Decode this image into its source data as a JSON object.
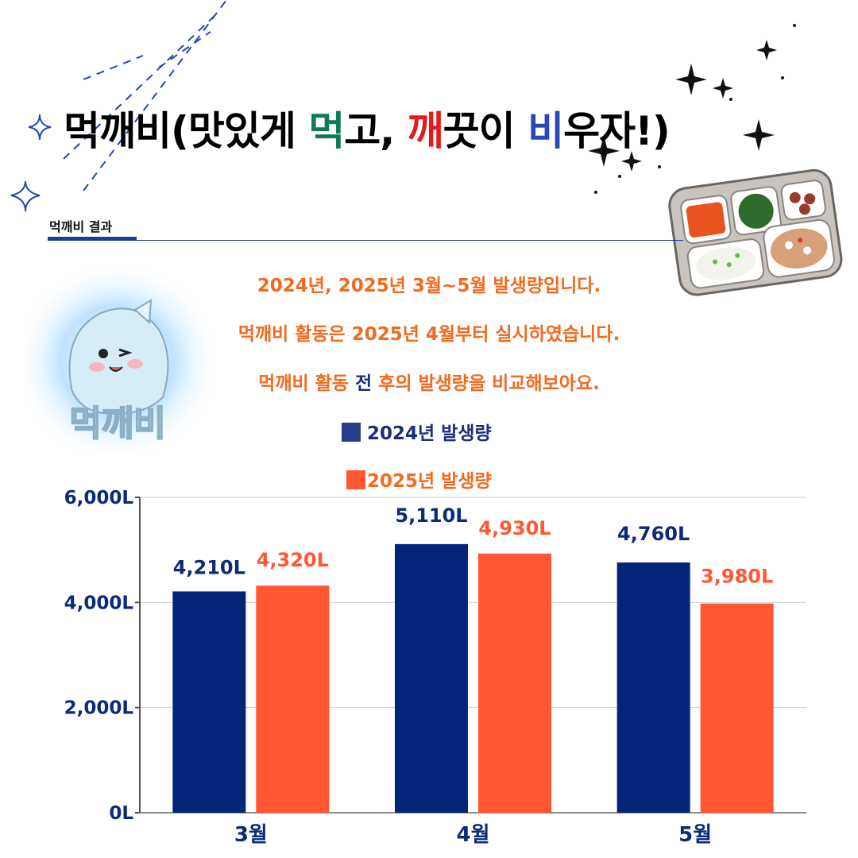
{
  "header": {
    "title_parts": [
      "먹깨비(맛있게 ",
      "먹",
      "고, ",
      "깨",
      "끗이 ",
      "비",
      "우자!)"
    ],
    "section_label": "먹깨비 결과"
  },
  "description": {
    "line1": "2024년, 2025년 3월~5월 발생량입니다.",
    "line2": "먹깨비 활동은 2025년 4월부터 실시하였습니다.",
    "line3_a": "먹깨비 활동 ",
    "line3_b": "전",
    "line3_c": " 후의 발생량을 비교해보아요."
  },
  "mascot": {
    "text": "먹깨비"
  },
  "colors": {
    "series_2024": "#022479",
    "series_2025": "#ff5732",
    "axis_text": "#0b2a7a",
    "accent_orange": "#f26a1e"
  },
  "icons": [
    "sparkle-icon",
    "dashed-lines-icon",
    "lunch-tray-icon",
    "mascot-illustration"
  ],
  "chart_data": {
    "type": "bar",
    "categories": [
      "3월",
      "4월",
      "5월"
    ],
    "series": [
      {
        "name": "2024년 발생량",
        "values": [
          4210,
          5110,
          4760
        ],
        "labels": [
          "4,210L",
          "5,110L",
          "4,760L"
        ]
      },
      {
        "name": "2025년 발생량",
        "values": [
          4320,
          4930,
          3980
        ],
        "labels": [
          "4,320L",
          "4,930L",
          "3,980L"
        ]
      }
    ],
    "ylim": [
      0,
      6000
    ],
    "yticks": [
      0,
      2000,
      4000,
      6000
    ],
    "ytick_labels": [
      "0L",
      "2,000L",
      "4,000L",
      "6,000L"
    ],
    "grid": true,
    "legend": "top-center"
  }
}
